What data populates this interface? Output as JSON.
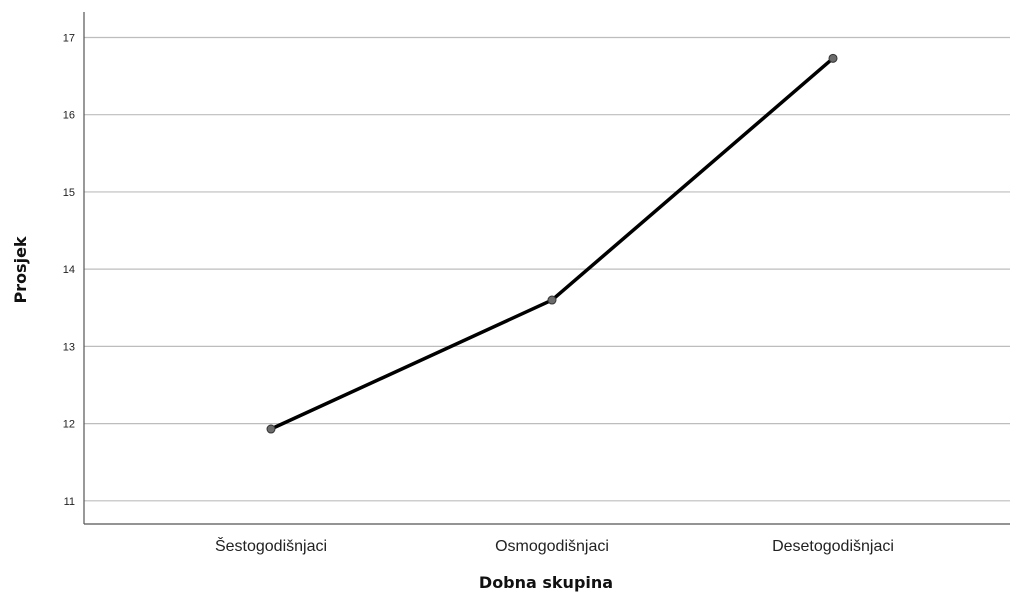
{
  "chart_data": {
    "type": "line",
    "title": "",
    "xlabel": "Dobna skupina",
    "ylabel": "Prosjek",
    "categories": [
      "Šestogodišnjaci",
      "Osmogodišnjaci",
      "Desetogodišnjaci"
    ],
    "series": [
      {
        "values": [
          11.93,
          13.6,
          16.73
        ]
      }
    ],
    "ylim": [
      10.7,
      17.33
    ],
    "yticks": [
      11,
      12,
      13,
      14,
      15,
      16,
      17
    ],
    "grid": true,
    "legend": "none",
    "colors": {
      "line": "#000000",
      "marker_fill": "#6b6b6b",
      "grid": "#bdbdbd",
      "axis": "#555555"
    }
  }
}
